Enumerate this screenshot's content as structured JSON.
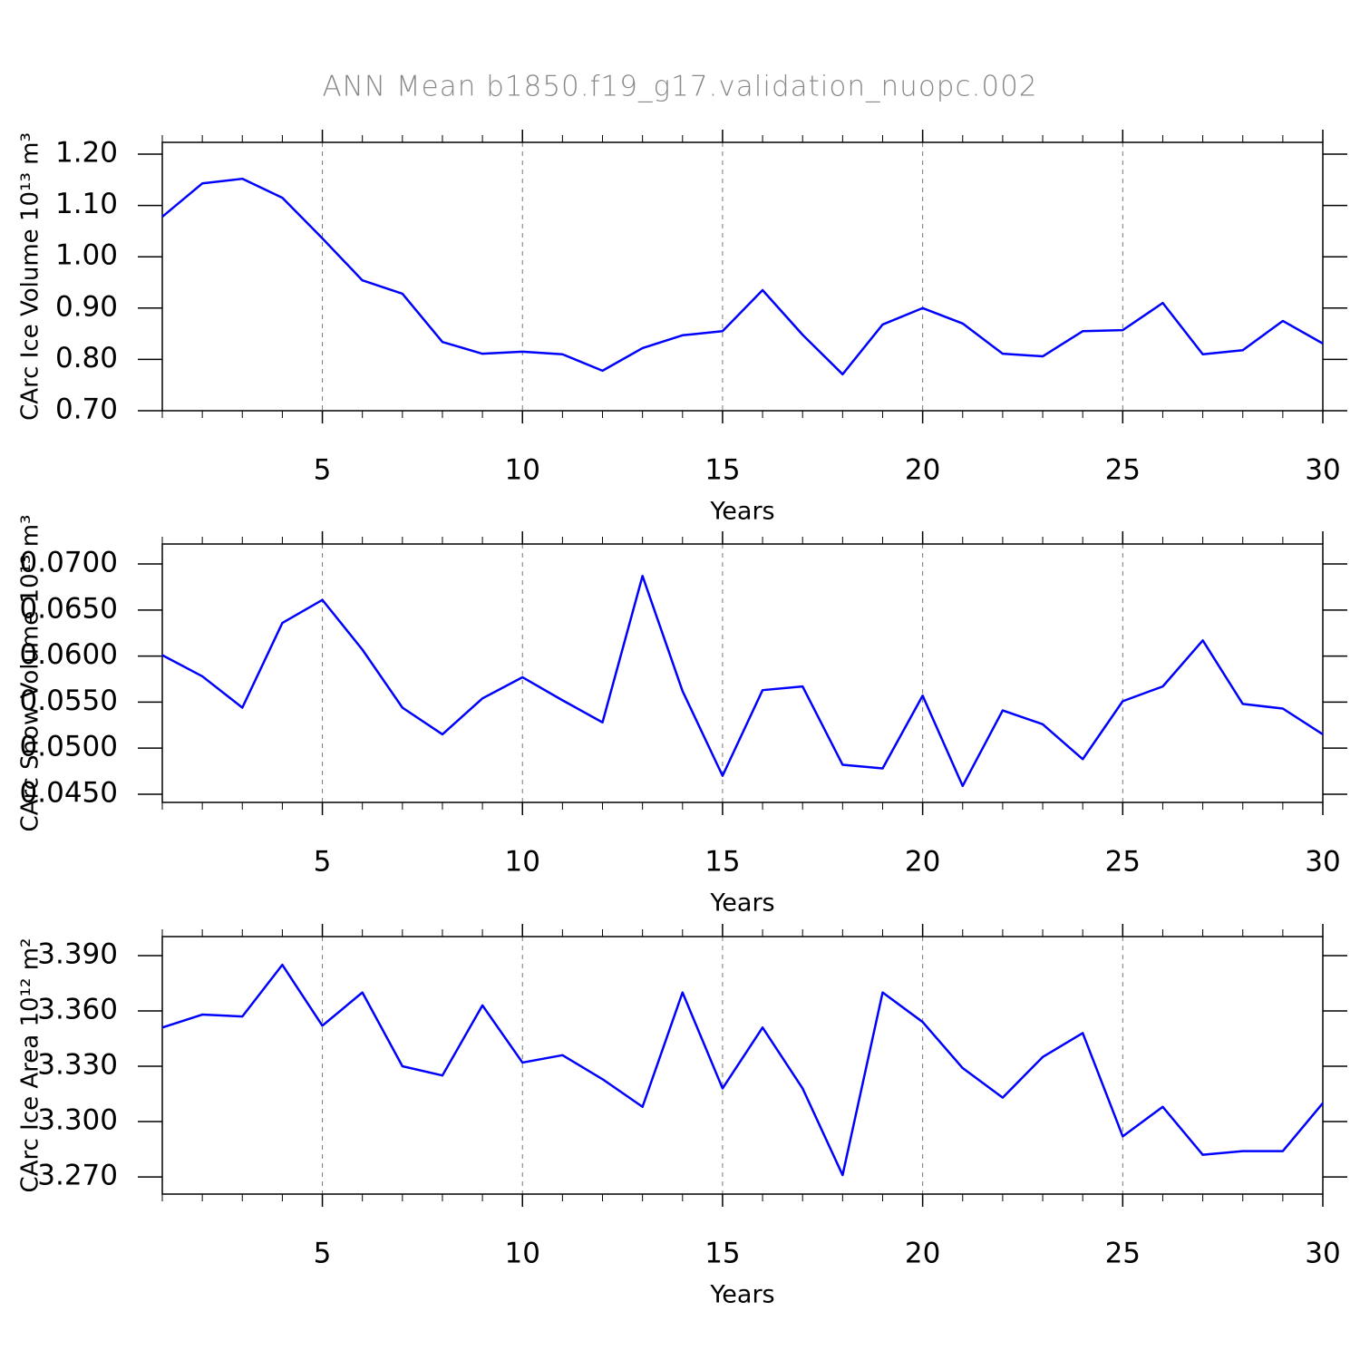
{
  "title": "ANN Mean b1850.f19_g17.validation_nuopc.002",
  "chart_data": [
    {
      "type": "line",
      "ylabel": "CArc Ice Volume 10¹³ m³",
      "xlabel": "Years",
      "x": [
        1,
        2,
        3,
        4,
        5,
        6,
        7,
        8,
        9,
        10,
        11,
        12,
        13,
        14,
        15,
        16,
        17,
        18,
        19,
        20,
        21,
        22,
        23,
        24,
        25,
        26,
        27,
        28,
        29,
        30
      ],
      "values": [
        1.078,
        1.143,
        1.152,
        1.115,
        1.036,
        0.954,
        0.928,
        0.834,
        0.811,
        0.815,
        0.81,
        0.778,
        0.822,
        0.847,
        0.855,
        0.935,
        0.848,
        0.771,
        0.868,
        0.9,
        0.87,
        0.811,
        0.806,
        0.855,
        0.857,
        0.91,
        0.81,
        0.818,
        0.875,
        0.831
      ],
      "color": "#0000ff",
      "xlim": [
        1,
        30
      ],
      "xticks": [
        5,
        10,
        15,
        20,
        25,
        30
      ],
      "ylim": [
        0.7,
        1.223
      ],
      "yticks": [
        {
          "value": 0.7,
          "label": "0.70"
        },
        {
          "value": 0.8,
          "label": "0.80"
        },
        {
          "value": 0.9,
          "label": "0.90"
        },
        {
          "value": 1.0,
          "label": "1.00"
        },
        {
          "value": 1.1,
          "label": "1.10"
        },
        {
          "value": 1.2,
          "label": "1.20"
        }
      ],
      "grid": "x"
    },
    {
      "type": "line",
      "ylabel": "CArc Snow Volume 10¹³ m³",
      "xlabel": "Years",
      "x": [
        1,
        2,
        3,
        4,
        5,
        6,
        7,
        8,
        9,
        10,
        11,
        12,
        13,
        14,
        15,
        16,
        17,
        18,
        19,
        20,
        21,
        22,
        23,
        24,
        25,
        26,
        27,
        28,
        29,
        30
      ],
      "values": [
        0.0601,
        0.0578,
        0.0544,
        0.0636,
        0.0661,
        0.0607,
        0.0544,
        0.0515,
        0.0554,
        0.0577,
        0.0552,
        0.0528,
        0.0687,
        0.0562,
        0.047,
        0.0563,
        0.0567,
        0.0482,
        0.0478,
        0.0557,
        0.0459,
        0.0541,
        0.0526,
        0.0488,
        0.0551,
        0.0567,
        0.0617,
        0.0548,
        0.0543,
        0.0515
      ],
      "color": "#0000ff",
      "xlim": [
        1,
        30
      ],
      "xticks": [
        5,
        10,
        15,
        20,
        25,
        30
      ],
      "ylim": [
        0.04411,
        0.07217
      ],
      "yticks": [
        {
          "value": 0.045,
          "label": "0.0450"
        },
        {
          "value": 0.05,
          "label": "0.0500"
        },
        {
          "value": 0.055,
          "label": "0.0550"
        },
        {
          "value": 0.06,
          "label": "0.0600"
        },
        {
          "value": 0.065,
          "label": "0.0650"
        },
        {
          "value": 0.07,
          "label": "0.0700"
        }
      ],
      "grid": "x"
    },
    {
      "type": "line",
      "ylabel": "CArc Ice Area 10¹² m²",
      "xlabel": "Years",
      "x": [
        1,
        2,
        3,
        4,
        5,
        6,
        7,
        8,
        9,
        10,
        11,
        12,
        13,
        14,
        15,
        16,
        17,
        18,
        19,
        20,
        21,
        22,
        23,
        24,
        25,
        26,
        27,
        28,
        29,
        30
      ],
      "values": [
        3.351,
        3.358,
        3.357,
        3.385,
        3.352,
        3.37,
        3.33,
        3.325,
        3.363,
        3.332,
        3.336,
        3.323,
        3.308,
        3.37,
        3.318,
        3.351,
        3.318,
        3.271,
        3.37,
        3.354,
        3.329,
        3.313,
        3.335,
        3.348,
        3.292,
        3.308,
        3.282,
        3.284,
        3.284,
        3.31
      ],
      "color": "#0000ff",
      "xlim": [
        1,
        30
      ],
      "xticks": [
        5,
        10,
        15,
        20,
        25,
        30
      ],
      "ylim": [
        3.2607,
        3.4003
      ],
      "yticks": [
        {
          "value": 3.27,
          "label": "3.270"
        },
        {
          "value": 3.3,
          "label": "3.300"
        },
        {
          "value": 3.33,
          "label": "3.330"
        },
        {
          "value": 3.36,
          "label": "3.360"
        },
        {
          "value": 3.39,
          "label": "3.390"
        }
      ],
      "grid": "x"
    }
  ]
}
